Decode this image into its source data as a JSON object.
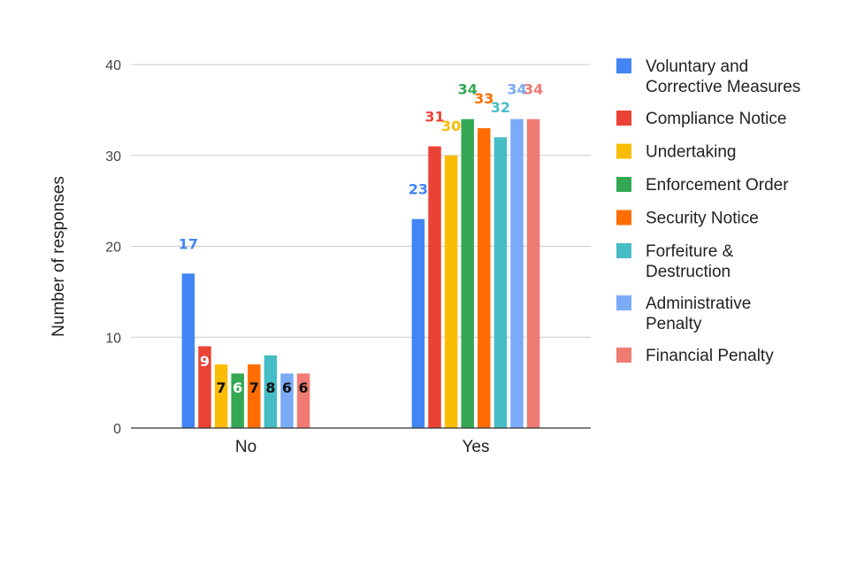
{
  "chart_data": {
    "type": "bar",
    "categories": [
      "No",
      "Yes"
    ],
    "ylabel": "Number of responses",
    "xlabel": "",
    "ylim": [
      0,
      40
    ],
    "yticks": [
      0,
      10,
      20,
      30,
      40
    ],
    "grid": true,
    "legend_position": "right",
    "series": [
      {
        "name": "Voluntary and Corrective Measures",
        "color": "#4285f4",
        "values": [
          17,
          23
        ]
      },
      {
        "name": "Compliance Notice",
        "color": "#ea4335",
        "values": [
          9,
          31
        ]
      },
      {
        "name": "Undertaking",
        "color": "#fbbc04",
        "values": [
          7,
          30
        ]
      },
      {
        "name": "Enforcement Order",
        "color": "#34a853",
        "values": [
          6,
          34
        ]
      },
      {
        "name": "Security Notice",
        "color": "#ff6d01",
        "values": [
          7,
          33
        ]
      },
      {
        "name": "Forfeiture & Destruction",
        "color": "#46bdc6",
        "values": [
          8,
          32
        ]
      },
      {
        "name": "Administrative Penalty",
        "color": "#7baaf7",
        "values": [
          6,
          34
        ]
      },
      {
        "name": "Financial Penalty",
        "color": "#f07b72",
        "values": [
          6,
          34
        ]
      }
    ]
  }
}
